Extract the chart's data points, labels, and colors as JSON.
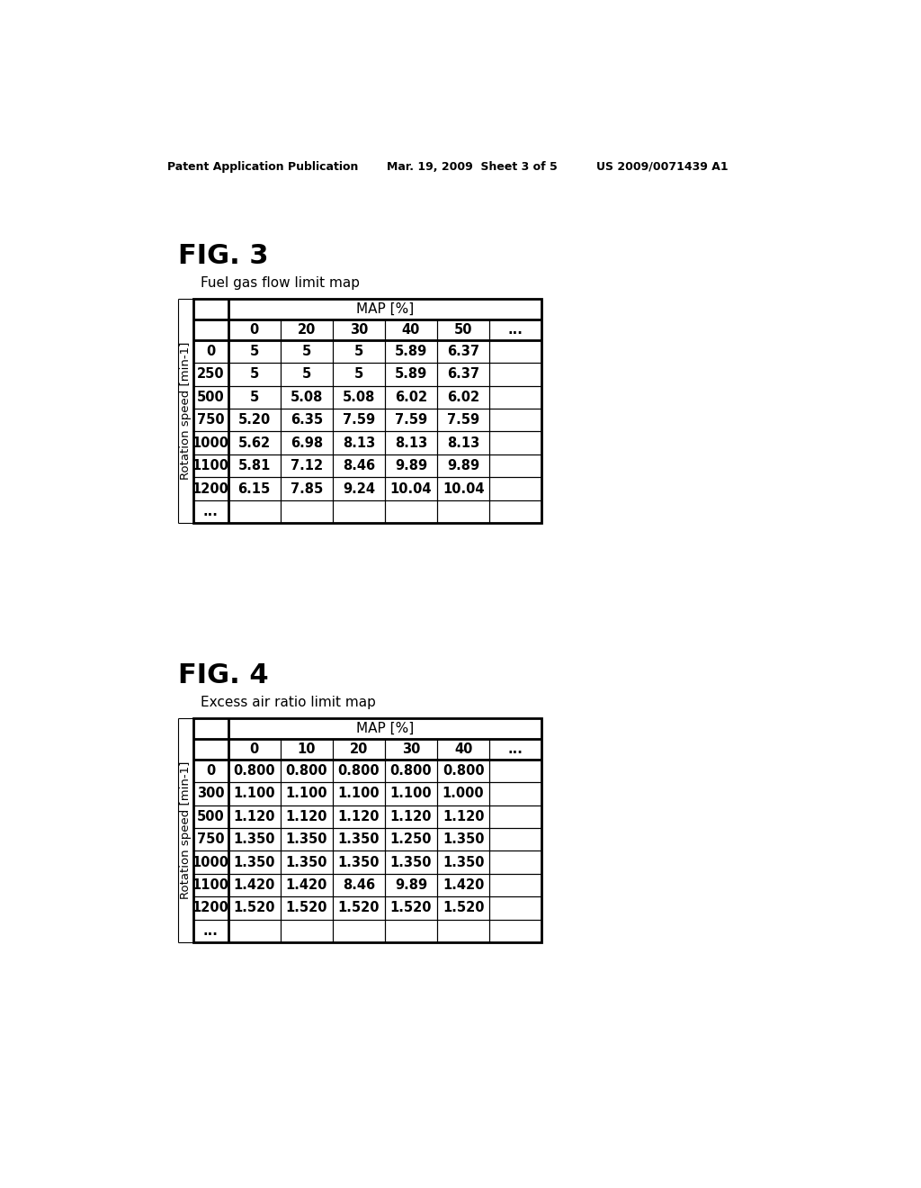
{
  "header_left": "Patent Application Publication",
  "header_mid": "Mar. 19, 2009  Sheet 3 of 5",
  "header_right": "US 2009/0071439 A1",
  "fig3_label": "FIG. 3",
  "fig3_subtitle": "Fuel gas flow limit map",
  "fig3_map_header": "MAP [%]",
  "fig3_col_headers": [
    "0",
    "20",
    "30",
    "40",
    "50",
    "..."
  ],
  "fig3_row_headers": [
    "0",
    "250",
    "500",
    "750",
    "1000",
    "1100",
    "1200",
    "..."
  ],
  "fig3_row_label": "Rotation speed [min-1]",
  "fig3_data": [
    [
      "5",
      "5",
      "5",
      "5.89",
      "6.37",
      ""
    ],
    [
      "5",
      "5",
      "5",
      "5.89",
      "6.37",
      ""
    ],
    [
      "5",
      "5.08",
      "5.08",
      "6.02",
      "6.02",
      ""
    ],
    [
      "5.20",
      "6.35",
      "7.59",
      "7.59",
      "7.59",
      ""
    ],
    [
      "5.62",
      "6.98",
      "8.13",
      "8.13",
      "8.13",
      ""
    ],
    [
      "5.81",
      "7.12",
      "8.46",
      "9.89",
      "9.89",
      ""
    ],
    [
      "6.15",
      "7.85",
      "9.24",
      "10.04",
      "10.04",
      ""
    ],
    [
      "",
      "",
      "",
      "",
      "",
      ""
    ]
  ],
  "fig4_label": "FIG. 4",
  "fig4_subtitle": "Excess air ratio limit map",
  "fig4_map_header": "MAP [%]",
  "fig4_col_headers": [
    "0",
    "10",
    "20",
    "30",
    "40",
    "..."
  ],
  "fig4_row_headers": [
    "0",
    "300",
    "500",
    "750",
    "1000",
    "1100",
    "1200",
    "..."
  ],
  "fig4_row_label": "Rotation speed [min-1]",
  "fig4_data": [
    [
      "0.800",
      "0.800",
      "0.800",
      "0.800",
      "0.800",
      ""
    ],
    [
      "1.100",
      "1.100",
      "1.100",
      "1.100",
      "1.000",
      ""
    ],
    [
      "1.120",
      "1.120",
      "1.120",
      "1.120",
      "1.120",
      ""
    ],
    [
      "1.350",
      "1.350",
      "1.350",
      "1.250",
      "1.350",
      ""
    ],
    [
      "1.350",
      "1.350",
      "1.350",
      "1.350",
      "1.350",
      ""
    ],
    [
      "1.420",
      "1.420",
      "8.46",
      "9.89",
      "1.420",
      ""
    ],
    [
      "1.520",
      "1.520",
      "1.520",
      "1.520",
      "1.520",
      ""
    ],
    [
      "",
      "",
      "",
      "",
      "",
      ""
    ]
  ],
  "background_color": "#ffffff",
  "text_color": "#000000",
  "line_color": "#000000"
}
